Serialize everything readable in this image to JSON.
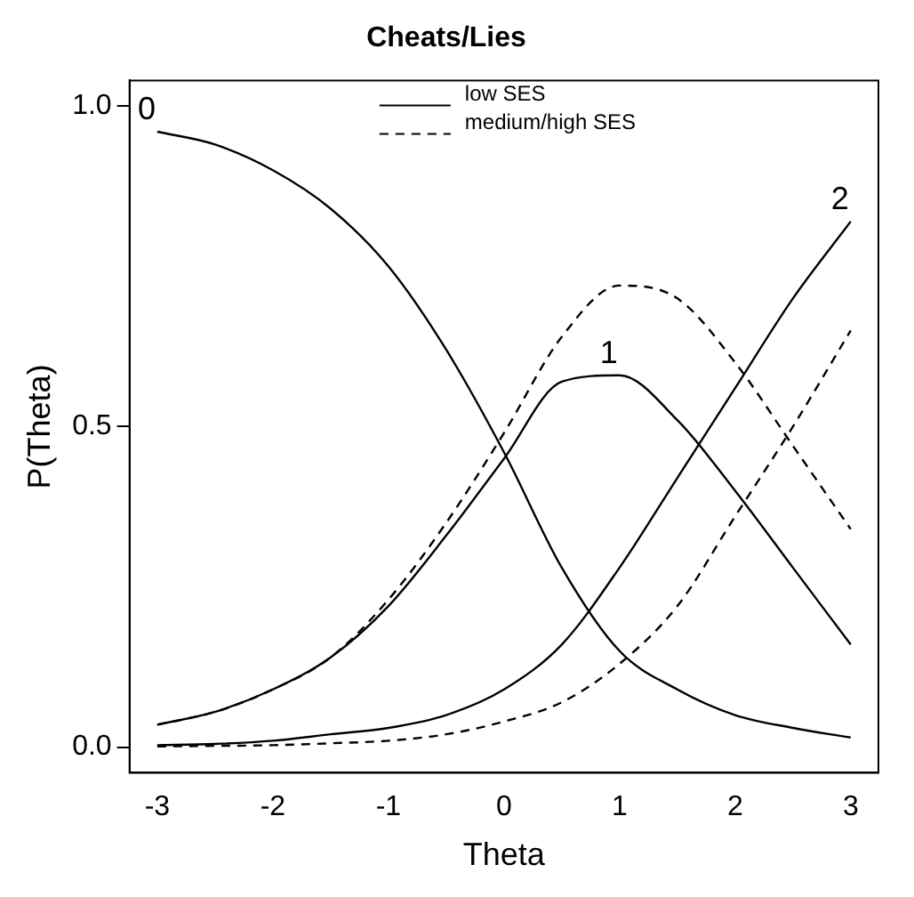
{
  "chart_data": {
    "type": "line",
    "title": "Cheats/Lies",
    "xlabel": "Theta",
    "ylabel": "P(Theta)",
    "x": [
      -3,
      -2.5,
      -2,
      -1.5,
      -1,
      -0.5,
      0,
      0.5,
      1,
      1.5,
      2,
      2.5,
      3
    ],
    "series": [
      {
        "name": "low SES",
        "color": "#000000",
        "line_style": "solid",
        "values": [
          0.96,
          0.94,
          0.9,
          0.84,
          0.75,
          0.62,
          0.46,
          0.28,
          0.15,
          0.09,
          0.05,
          0.03,
          0.015
        ]
      },
      {
        "color": "#000000",
        "line_style": "solid",
        "values": [
          0.035,
          0.055,
          0.09,
          0.14,
          0.22,
          0.33,
          0.45,
          0.57,
          0.58,
          0.51,
          0.4,
          0.28,
          0.16
        ]
      },
      {
        "color": "#000000",
        "line_style": "solid",
        "values": [
          0.003,
          0.005,
          0.01,
          0.02,
          0.03,
          0.05,
          0.09,
          0.16,
          0.28,
          0.42,
          0.56,
          0.7,
          0.82
        ]
      },
      {
        "name": "medium/high SES",
        "color": "#000000",
        "line_style": "dashed",
        "values": [
          0.035,
          0.055,
          0.09,
          0.14,
          0.23,
          0.35,
          0.49,
          0.64,
          0.72,
          0.7,
          0.6,
          0.47,
          0.34
        ]
      },
      {
        "color": "#000000",
        "line_style": "dashed",
        "values": [
          0.001,
          0.002,
          0.003,
          0.006,
          0.01,
          0.02,
          0.04,
          0.07,
          0.13,
          0.22,
          0.36,
          0.5,
          0.65
        ]
      }
    ],
    "xlim": [
      -3.24,
      3.24
    ],
    "xticks": [
      -3,
      -2,
      -1,
      0,
      1,
      2,
      3
    ],
    "ylim": [
      -0.04,
      1.04
    ],
    "yticks": [
      {
        "value": 0,
        "label": "0.0"
      },
      {
        "value": 0.5,
        "label": "0.5"
      },
      {
        "value": 1,
        "label": "1.0"
      }
    ],
    "annotations": [
      {
        "text": "0",
        "x": -3,
        "y": 0.96
      },
      {
        "text": "1",
        "x": 1,
        "y": 0.58
      },
      {
        "text": "2",
        "x": 3,
        "y": 0.82
      }
    ],
    "grid": false,
    "legend": "top",
    "marker": "none"
  }
}
